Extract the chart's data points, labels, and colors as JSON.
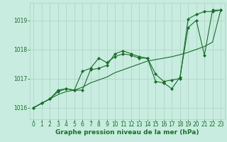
{
  "background_color": "#c8ece0",
  "grid_color": "#a8d4c0",
  "line_color": "#1a6e2a",
  "marker_color": "#1a6e2a",
  "xlabel": "Graphe pression niveau de la mer (hPa)",
  "xlabel_color": "#1a6e2a",
  "xlabel_fontsize": 6.5,
  "tick_color": "#1a6e2a",
  "tick_fontsize": 5.5,
  "ylim": [
    1015.6,
    1019.6
  ],
  "yticks": [
    1016,
    1017,
    1018,
    1019
  ],
  "xlim": [
    -0.5,
    23.5
  ],
  "xticks": [
    0,
    1,
    2,
    3,
    4,
    5,
    6,
    7,
    8,
    9,
    10,
    11,
    12,
    13,
    14,
    15,
    16,
    17,
    18,
    19,
    20,
    21,
    22,
    23
  ],
  "series1_x": [
    0,
    1,
    2,
    3,
    4,
    5,
    6,
    7,
    8,
    9,
    10,
    11,
    12,
    13,
    14,
    15,
    16,
    17,
    18,
    19,
    20,
    21,
    22,
    23
  ],
  "series1_y": [
    1016.0,
    1016.15,
    1016.3,
    1016.45,
    1016.55,
    1016.6,
    1016.7,
    1016.85,
    1016.95,
    1017.05,
    1017.2,
    1017.3,
    1017.4,
    1017.5,
    1017.6,
    1017.65,
    1017.7,
    1017.75,
    1017.82,
    1017.9,
    1018.0,
    1018.1,
    1018.25,
    1019.35
  ],
  "series2_x": [
    0,
    1,
    2,
    3,
    4,
    5,
    6,
    7,
    8,
    9,
    10,
    11,
    12,
    13,
    14,
    15,
    16,
    17,
    18,
    19,
    20,
    21,
    22,
    23
  ],
  "series2_y": [
    1016.0,
    1016.15,
    1016.3,
    1016.55,
    1016.65,
    1016.6,
    1016.6,
    1017.3,
    1017.35,
    1017.45,
    1017.85,
    1017.95,
    1017.85,
    1017.75,
    1017.7,
    1016.9,
    1016.85,
    1016.65,
    1017.05,
    1018.75,
    1019.0,
    1017.8,
    1019.35,
    1019.35
  ],
  "series3_x": [
    0,
    1,
    2,
    3,
    4,
    5,
    6,
    7,
    8,
    9,
    10,
    11,
    12,
    13,
    14,
    15,
    16,
    17,
    18,
    19,
    20,
    21,
    22,
    23
  ],
  "series3_y": [
    1016.0,
    1016.15,
    1016.3,
    1016.6,
    1016.65,
    1016.6,
    1017.25,
    1017.35,
    1017.7,
    1017.55,
    1017.75,
    1017.85,
    1017.8,
    1017.7,
    1017.7,
    1017.15,
    1016.9,
    1016.95,
    1017.0,
    1019.05,
    1019.2,
    1019.3,
    1019.3,
    1019.35
  ]
}
